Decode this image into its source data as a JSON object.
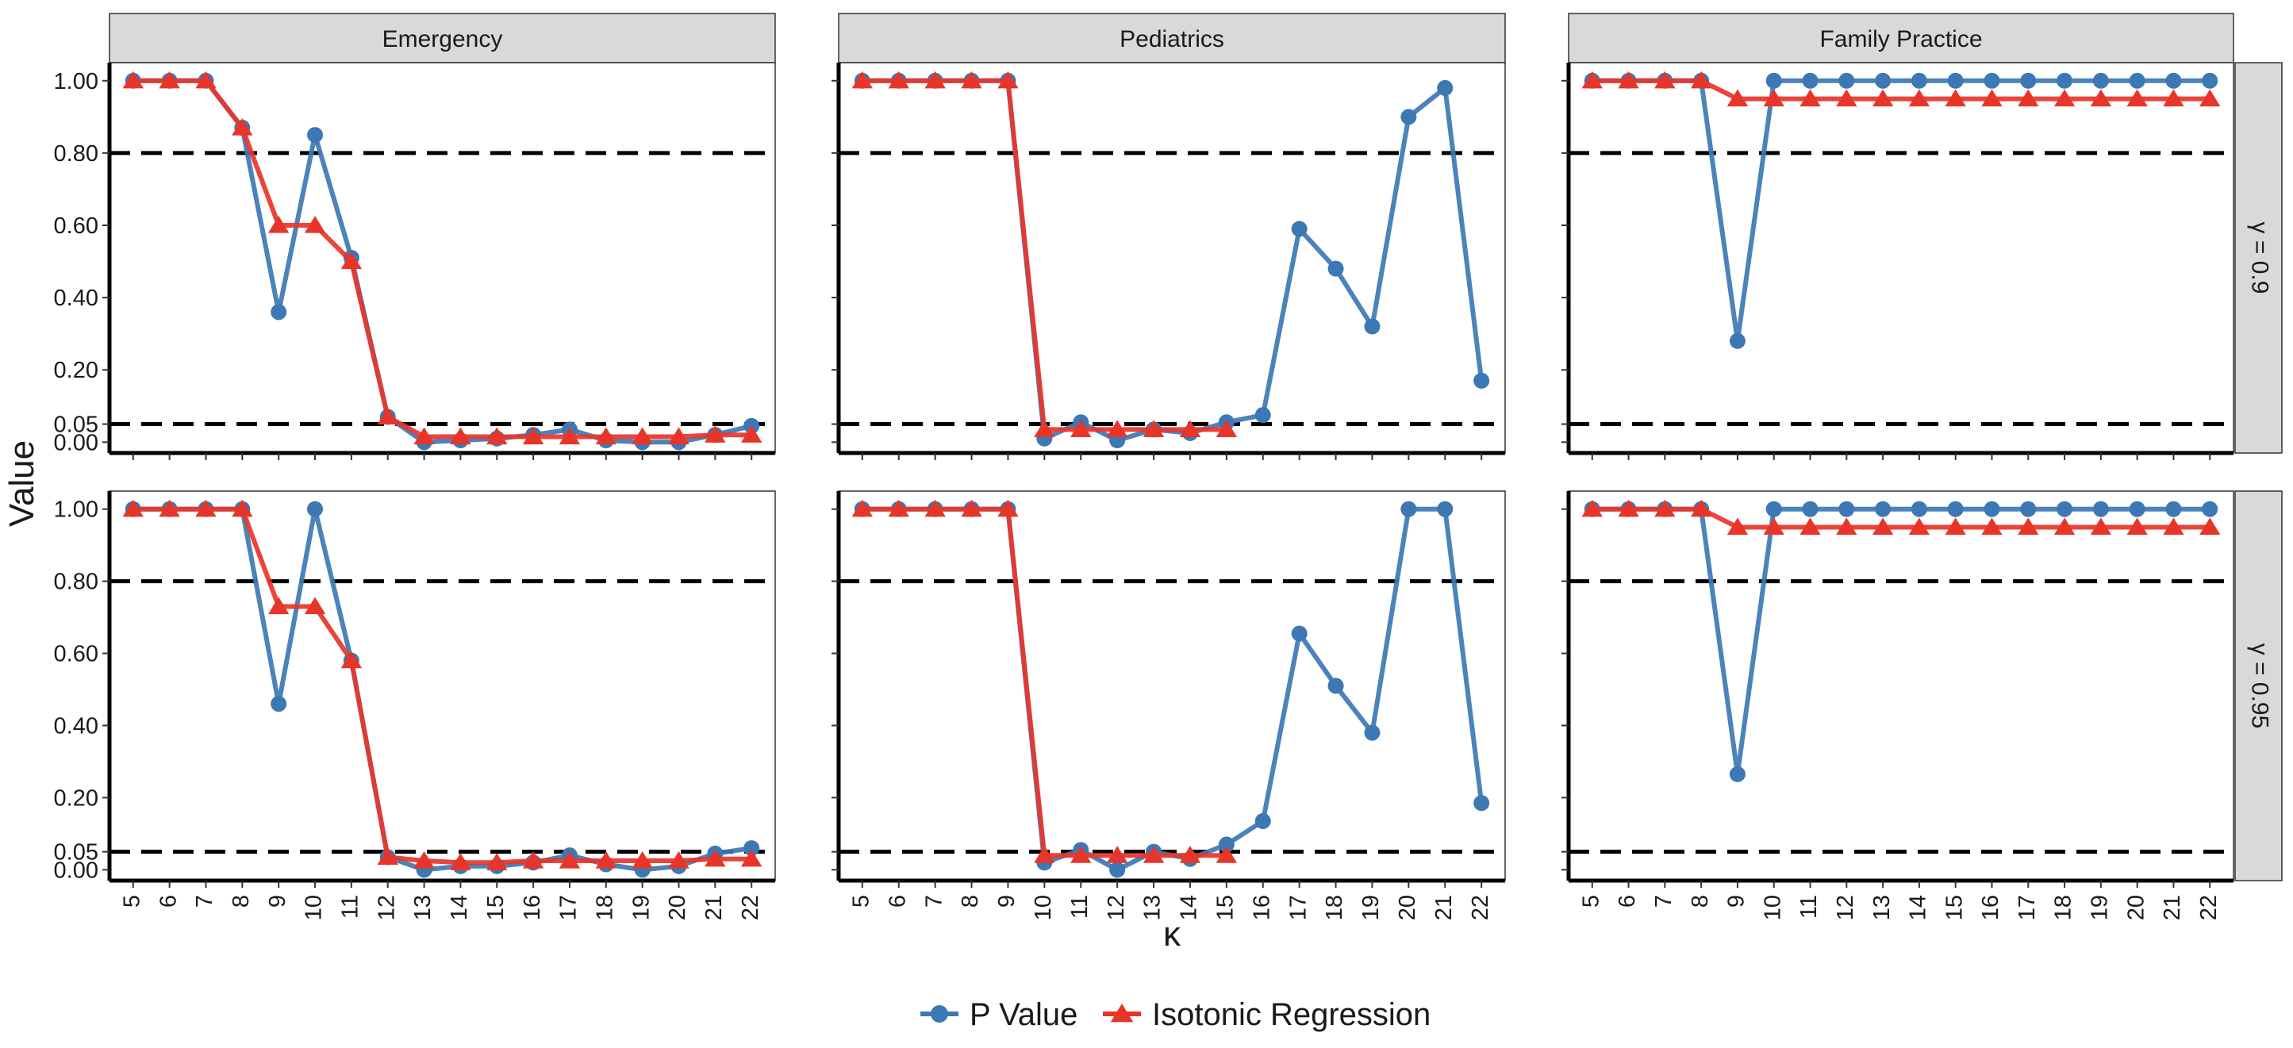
{
  "chart_data": {
    "type": "line",
    "facet_columns": [
      "Emergency",
      "Pediatrics",
      "Family Practice"
    ],
    "facet_rows": [
      "γ = 0.9",
      "γ = 0.95"
    ],
    "xlabel": "κ",
    "ylabel": "Value",
    "x": [
      5,
      6,
      7,
      8,
      9,
      10,
      11,
      12,
      13,
      14,
      15,
      16,
      17,
      18,
      19,
      20,
      21,
      22
    ],
    "ylim": [
      -0.03,
      1.05
    ],
    "yticks": [
      0.0,
      0.05,
      0.2,
      0.4,
      0.6,
      0.8,
      1.0
    ],
    "ytick_labels": [
      "0.00",
      "0.05",
      "0.20",
      "0.40",
      "0.60",
      "0.80",
      "1.00"
    ],
    "reference_lines": [
      0.05,
      0.8
    ],
    "legend": {
      "position": "bottom",
      "entries": [
        {
          "name": "P Value",
          "color": "#3C78B4",
          "marker": "circle"
        },
        {
          "name": "Isotonic Regression",
          "color": "#E8352A",
          "marker": "triangle"
        }
      ]
    },
    "panels": [
      {
        "column": "Emergency",
        "row": "γ = 0.9",
        "series": [
          {
            "name": "P Value",
            "x": [
              5,
              6,
              7,
              8,
              9,
              10,
              11,
              12,
              13,
              14,
              15,
              16,
              17,
              18,
              19,
              20,
              21,
              22
            ],
            "values": [
              1.0,
              1.0,
              1.0,
              0.87,
              0.36,
              0.85,
              0.51,
              0.07,
              0.0,
              0.005,
              0.01,
              0.02,
              0.035,
              0.005,
              0.0,
              0.0,
              0.02,
              0.045
            ]
          },
          {
            "name": "Isotonic Regression",
            "x": [
              5,
              6,
              7,
              8,
              9,
              10,
              11,
              12,
              13,
              14,
              15,
              16,
              17,
              18,
              19,
              20,
              21,
              22
            ],
            "values": [
              1.0,
              1.0,
              1.0,
              0.87,
              0.6,
              0.6,
              0.5,
              0.07,
              0.015,
              0.015,
              0.015,
              0.015,
              0.015,
              0.015,
              0.015,
              0.015,
              0.02,
              0.02
            ]
          }
        ]
      },
      {
        "column": "Pediatrics",
        "row": "γ = 0.9",
        "series": [
          {
            "name": "P Value",
            "x": [
              5,
              6,
              7,
              8,
              9,
              10,
              11,
              12,
              13,
              14,
              15,
              16,
              17,
              18,
              19,
              20,
              21,
              22
            ],
            "values": [
              1.0,
              1.0,
              1.0,
              1.0,
              1.0,
              0.01,
              0.055,
              0.005,
              0.035,
              0.025,
              0.055,
              0.075,
              0.59,
              0.48,
              0.32,
              0.9,
              0.98,
              0.17
            ]
          },
          {
            "name": "Isotonic Regression",
            "x": [
              5,
              6,
              7,
              8,
              9,
              10,
              11,
              12,
              13,
              14,
              15
            ],
            "values": [
              1.0,
              1.0,
              1.0,
              1.0,
              1.0,
              0.035,
              0.035,
              0.035,
              0.035,
              0.035,
              0.035
            ]
          }
        ]
      },
      {
        "column": "Family Practice",
        "row": "γ = 0.9",
        "series": [
          {
            "name": "P Value",
            "x": [
              5,
              6,
              7,
              8,
              9,
              10,
              11,
              12,
              13,
              14,
              15,
              16,
              17,
              18,
              19,
              20,
              21,
              22
            ],
            "values": [
              1.0,
              1.0,
              1.0,
              1.0,
              0.28,
              1.0,
              1.0,
              1.0,
              1.0,
              1.0,
              1.0,
              1.0,
              1.0,
              1.0,
              1.0,
              1.0,
              1.0,
              1.0
            ]
          },
          {
            "name": "Isotonic Regression",
            "x": [
              5,
              6,
              7,
              8,
              9,
              10,
              11,
              12,
              13,
              14,
              15,
              16,
              17,
              18,
              19,
              20,
              21,
              22
            ],
            "values": [
              1.0,
              1.0,
              1.0,
              1.0,
              0.95,
              0.95,
              0.95,
              0.95,
              0.95,
              0.95,
              0.95,
              0.95,
              0.95,
              0.95,
              0.95,
              0.95,
              0.95,
              0.95
            ]
          }
        ]
      },
      {
        "column": "Emergency",
        "row": "γ = 0.95",
        "series": [
          {
            "name": "P Value",
            "x": [
              5,
              6,
              7,
              8,
              9,
              10,
              11,
              12,
              13,
              14,
              15,
              16,
              17,
              18,
              19,
              20,
              21,
              22
            ],
            "values": [
              1.0,
              1.0,
              1.0,
              1.0,
              0.46,
              1.0,
              0.58,
              0.035,
              0.0,
              0.01,
              0.01,
              0.02,
              0.04,
              0.015,
              0.0,
              0.01,
              0.045,
              0.06
            ]
          },
          {
            "name": "Isotonic Regression",
            "x": [
              5,
              6,
              7,
              8,
              9,
              10,
              11,
              12,
              13,
              14,
              15,
              16,
              17,
              18,
              19,
              20,
              21,
              22
            ],
            "values": [
              1.0,
              1.0,
              1.0,
              1.0,
              0.73,
              0.73,
              0.58,
              0.035,
              0.025,
              0.02,
              0.02,
              0.025,
              0.025,
              0.025,
              0.025,
              0.025,
              0.03,
              0.03
            ]
          }
        ]
      },
      {
        "column": "Pediatrics",
        "row": "γ = 0.95",
        "series": [
          {
            "name": "P Value",
            "x": [
              5,
              6,
              7,
              8,
              9,
              10,
              11,
              12,
              13,
              14,
              15,
              16,
              17,
              18,
              19,
              20,
              21,
              22
            ],
            "values": [
              1.0,
              1.0,
              1.0,
              1.0,
              1.0,
              0.02,
              0.055,
              0.0,
              0.05,
              0.03,
              0.07,
              0.135,
              0.655,
              0.51,
              0.38,
              1.0,
              1.0,
              0.185
            ]
          },
          {
            "name": "Isotonic Regression",
            "x": [
              5,
              6,
              7,
              8,
              9,
              10,
              11,
              12,
              13,
              14,
              15
            ],
            "values": [
              1.0,
              1.0,
              1.0,
              1.0,
              1.0,
              0.04,
              0.04,
              0.04,
              0.04,
              0.04,
              0.04
            ]
          }
        ]
      },
      {
        "column": "Family Practice",
        "row": "γ = 0.95",
        "series": [
          {
            "name": "P Value",
            "x": [
              5,
              6,
              7,
              8,
              9,
              10,
              11,
              12,
              13,
              14,
              15,
              16,
              17,
              18,
              19,
              20,
              21,
              22
            ],
            "values": [
              1.0,
              1.0,
              1.0,
              1.0,
              0.265,
              1.0,
              1.0,
              1.0,
              1.0,
              1.0,
              1.0,
              1.0,
              1.0,
              1.0,
              1.0,
              1.0,
              1.0,
              1.0
            ]
          },
          {
            "name": "Isotonic Regression",
            "x": [
              5,
              6,
              7,
              8,
              9,
              10,
              11,
              12,
              13,
              14,
              15,
              16,
              17,
              18,
              19,
              20,
              21,
              22
            ],
            "values": [
              1.0,
              1.0,
              1.0,
              1.0,
              0.95,
              0.95,
              0.95,
              0.95,
              0.95,
              0.95,
              0.95,
              0.95,
              0.95,
              0.95,
              0.95,
              0.95,
              0.95,
              0.95
            ]
          }
        ]
      }
    ]
  }
}
